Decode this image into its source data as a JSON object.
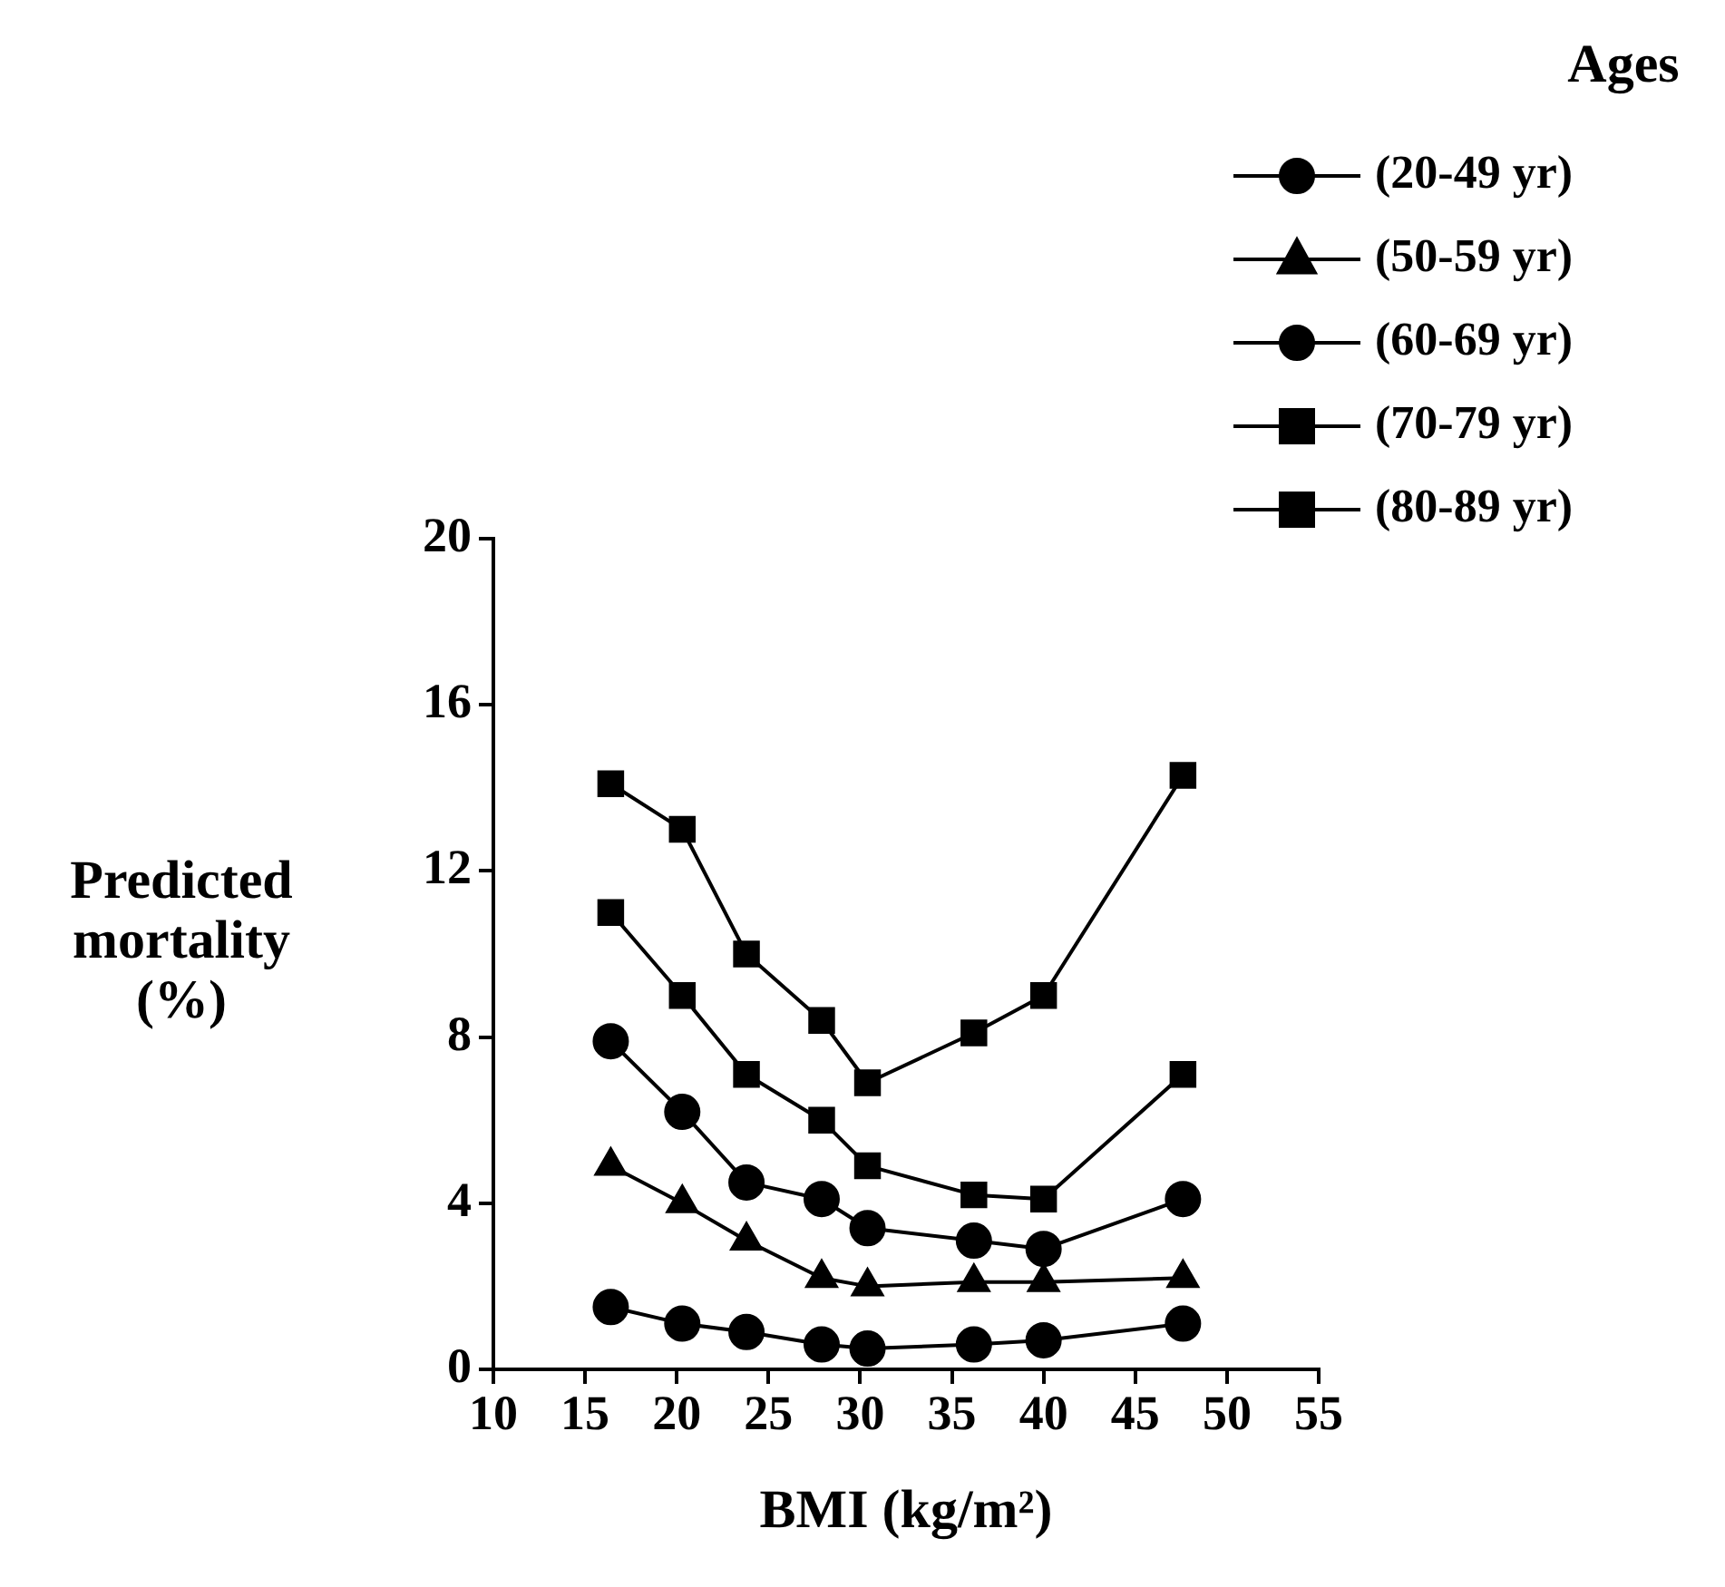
{
  "chart_data": {
    "type": "line",
    "xlabel": "BMI (kg/m²)",
    "ylabel": "Predicted mortality (%)",
    "legend_title": "Ages",
    "legend": "top right",
    "grid": false,
    "line_style": "solid",
    "x": [
      16.4,
      20.3,
      23.8,
      27.9,
      30.4,
      36.2,
      40,
      47.6
    ],
    "xlim": [
      10,
      55
    ],
    "xticks": [
      10,
      15,
      20,
      25,
      30,
      35,
      40,
      45,
      50,
      55
    ],
    "ylim": [
      0,
      20
    ],
    "yticks": [
      0,
      4,
      8,
      12,
      16,
      20
    ],
    "series": [
      {
        "name": "(20-49 yr)",
        "color": "#000000",
        "marker": "circle",
        "values": [
          1.5,
          1.1,
          0.9,
          0.6,
          0.5,
          0.6,
          0.7,
          1.1
        ]
      },
      {
        "name": "(50-59 yr)",
        "color": "#000000",
        "marker": "triangle",
        "values": [
          4.9,
          4.0,
          3.1,
          2.2,
          2.0,
          2.1,
          2.1,
          2.2
        ]
      },
      {
        "name": "(60-69 yr)",
        "color": "#000000",
        "marker": "circle",
        "values": [
          7.9,
          6.2,
          4.5,
          4.1,
          3.4,
          3.1,
          2.9,
          4.1
        ]
      },
      {
        "name": "(70-79 yr)",
        "color": "#000000",
        "marker": "square",
        "values": [
          11.0,
          9.0,
          7.1,
          6.0,
          4.9,
          4.2,
          4.1,
          7.1
        ]
      },
      {
        "name": "(80-89 yr)",
        "color": "#000000",
        "marker": "square",
        "values": [
          14.1,
          13.0,
          10.0,
          8.4,
          6.9,
          8.1,
          9.0,
          14.3
        ]
      }
    ]
  }
}
